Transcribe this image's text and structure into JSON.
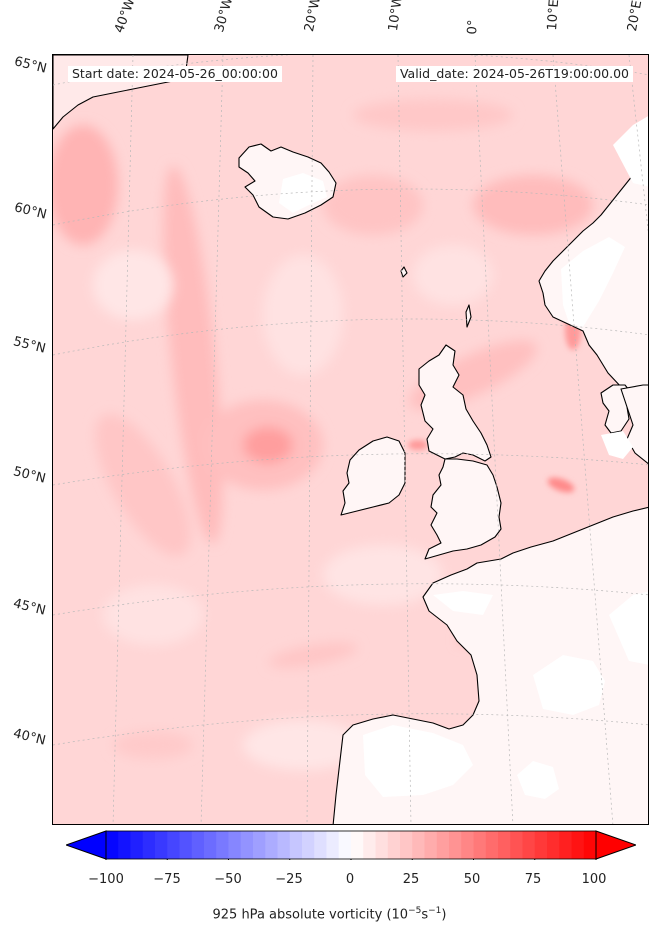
{
  "header": {
    "start_date": "Start date: 2024-05-26_00:00:00",
    "valid_date": "Valid_date: 2024-05-26T19:00:00.00"
  },
  "map": {
    "projection": "lambert-conformal",
    "region": "North Atlantic / Western Europe",
    "lat_labels": [
      "65°N",
      "60°N",
      "55°N",
      "50°N",
      "45°N",
      "40°N"
    ],
    "lon_labels": [
      "40°W",
      "30°W",
      "20°W",
      "10°W",
      "0°",
      "10°E",
      "20°E"
    ],
    "field": "925 hPa absolute vorticity",
    "dominant_color": "#ffd0d0",
    "coastline_color": "#000000",
    "gridline_style": "dotted grey"
  },
  "colorbar": {
    "ticks": [
      "−100",
      "−75",
      "−50",
      "−25",
      "0",
      "25",
      "50",
      "75",
      "100"
    ],
    "min": -100,
    "max": 100,
    "cmap": "bwr",
    "low_color": "#0000ff",
    "mid_color": "#ffffff",
    "high_color": "#ff0000",
    "extend": "both",
    "label_prefix": "925 hPa absolute vorticity (10",
    "label_exp1": "−5",
    "label_mid": "s",
    "label_exp2": "−1",
    "label_suffix": ")"
  }
}
